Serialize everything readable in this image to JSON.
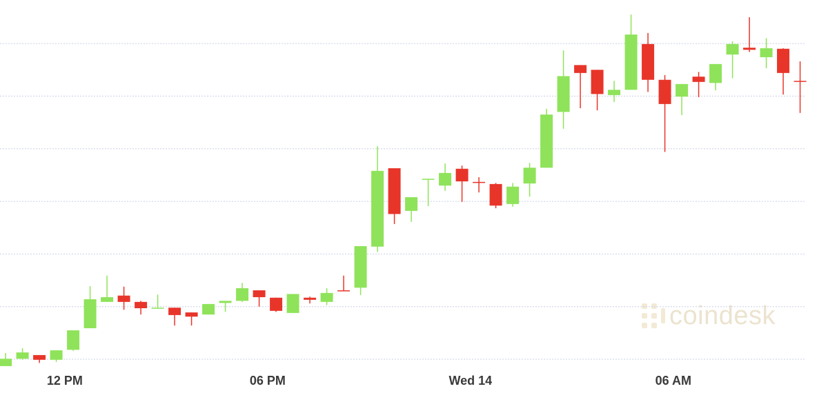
{
  "chart_data": {
    "type": "candlestick",
    "watermark": "coindesk",
    "x": [
      0,
      1,
      2,
      3,
      4,
      5,
      6,
      7,
      8,
      9,
      10,
      11,
      12,
      13,
      14,
      15,
      16,
      17,
      18,
      19,
      20,
      21,
      22,
      23,
      24,
      25,
      26,
      27,
      28,
      29,
      30,
      31,
      32,
      33,
      34,
      35,
      36,
      37,
      38,
      39,
      40,
      41,
      42,
      43,
      44,
      45,
      46,
      47
    ],
    "xlim": [
      -0.33,
      48.65
    ],
    "xticks": [
      {
        "value": 3.5,
        "label": "12 PM"
      },
      {
        "value": 15.5,
        "label": "06 PM"
      },
      {
        "value": 27.5,
        "label": "Wed 14"
      },
      {
        "value": 39.5,
        "label": "06 AM"
      }
    ],
    "ylim": [
      -0.2,
      6.6
    ],
    "yticks": [
      0,
      1,
      2,
      3,
      4,
      5,
      6
    ],
    "grid": true,
    "up_color": "#8fe35a",
    "down_color": "#e8352a",
    "grid_color": "#c9cfe6",
    "open": [
      -0.13,
      0.01,
      0.08,
      -0.01,
      0.18,
      0.59,
      1.09,
      1.21,
      1.09,
      0.97,
      0.98,
      0.89,
      0.85,
      1.07,
      1.11,
      1.31,
      1.17,
      0.88,
      1.17,
      1.09,
      1.31,
      1.36,
      2.14,
      3.63,
      2.82,
      3.41,
      3.3,
      3.62,
      3.37,
      3.33,
      2.95,
      3.34,
      3.64,
      4.7,
      5.59,
      5.5,
      5.02,
      5.12,
      5.99,
      5.31,
      4.99,
      5.37,
      5.25,
      5.79,
      5.92,
      5.74,
      5.9,
      5.29
    ],
    "high": [
      0.12,
      0.21,
      0.08,
      0.17,
      0.55,
      1.39,
      1.59,
      1.38,
      1.11,
      1.23,
      0.98,
      0.89,
      1.05,
      1.11,
      1.45,
      1.31,
      1.17,
      1.24,
      1.19,
      1.35,
      1.59,
      2.15,
      4.05,
      3.63,
      3.08,
      3.43,
      3.72,
      3.68,
      3.46,
      3.35,
      3.35,
      3.73,
      4.76,
      5.87,
      5.59,
      5.5,
      5.29,
      6.55,
      6.2,
      5.4,
      5.23,
      5.46,
      5.61,
      6.04,
      6.5,
      6.1,
      5.91,
      5.66
    ],
    "low": [
      -0.13,
      -0.01,
      -0.07,
      -0.05,
      0.16,
      0.59,
      1.09,
      0.94,
      0.85,
      0.97,
      0.64,
      0.64,
      0.85,
      0.9,
      1.09,
      1.0,
      0.9,
      0.88,
      1.06,
      1.03,
      1.3,
      1.22,
      2.04,
      2.57,
      2.61,
      2.91,
      3.2,
      2.99,
      3.17,
      2.87,
      2.9,
      3.09,
      3.64,
      4.38,
      4.77,
      4.73,
      4.89,
      5.12,
      5.08,
      3.94,
      4.64,
      4.98,
      5.11,
      5.34,
      5.84,
      5.53,
      5.03,
      4.68
    ],
    "close": [
      0.01,
      0.13,
      -0.01,
      0.17,
      0.55,
      1.14,
      1.18,
      1.09,
      0.97,
      0.98,
      0.84,
      0.81,
      1.05,
      1.11,
      1.35,
      1.18,
      0.92,
      1.24,
      1.13,
      1.26,
      1.3,
      2.15,
      3.58,
      2.76,
      3.08,
      3.43,
      3.54,
      3.38,
      3.35,
      2.92,
      3.28,
      3.64,
      4.65,
      5.38,
      5.44,
      5.04,
      5.12,
      6.17,
      5.31,
      4.85,
      5.23,
      5.27,
      5.61,
      5.99,
      5.88,
      5.91,
      5.44,
      5.28
    ]
  }
}
